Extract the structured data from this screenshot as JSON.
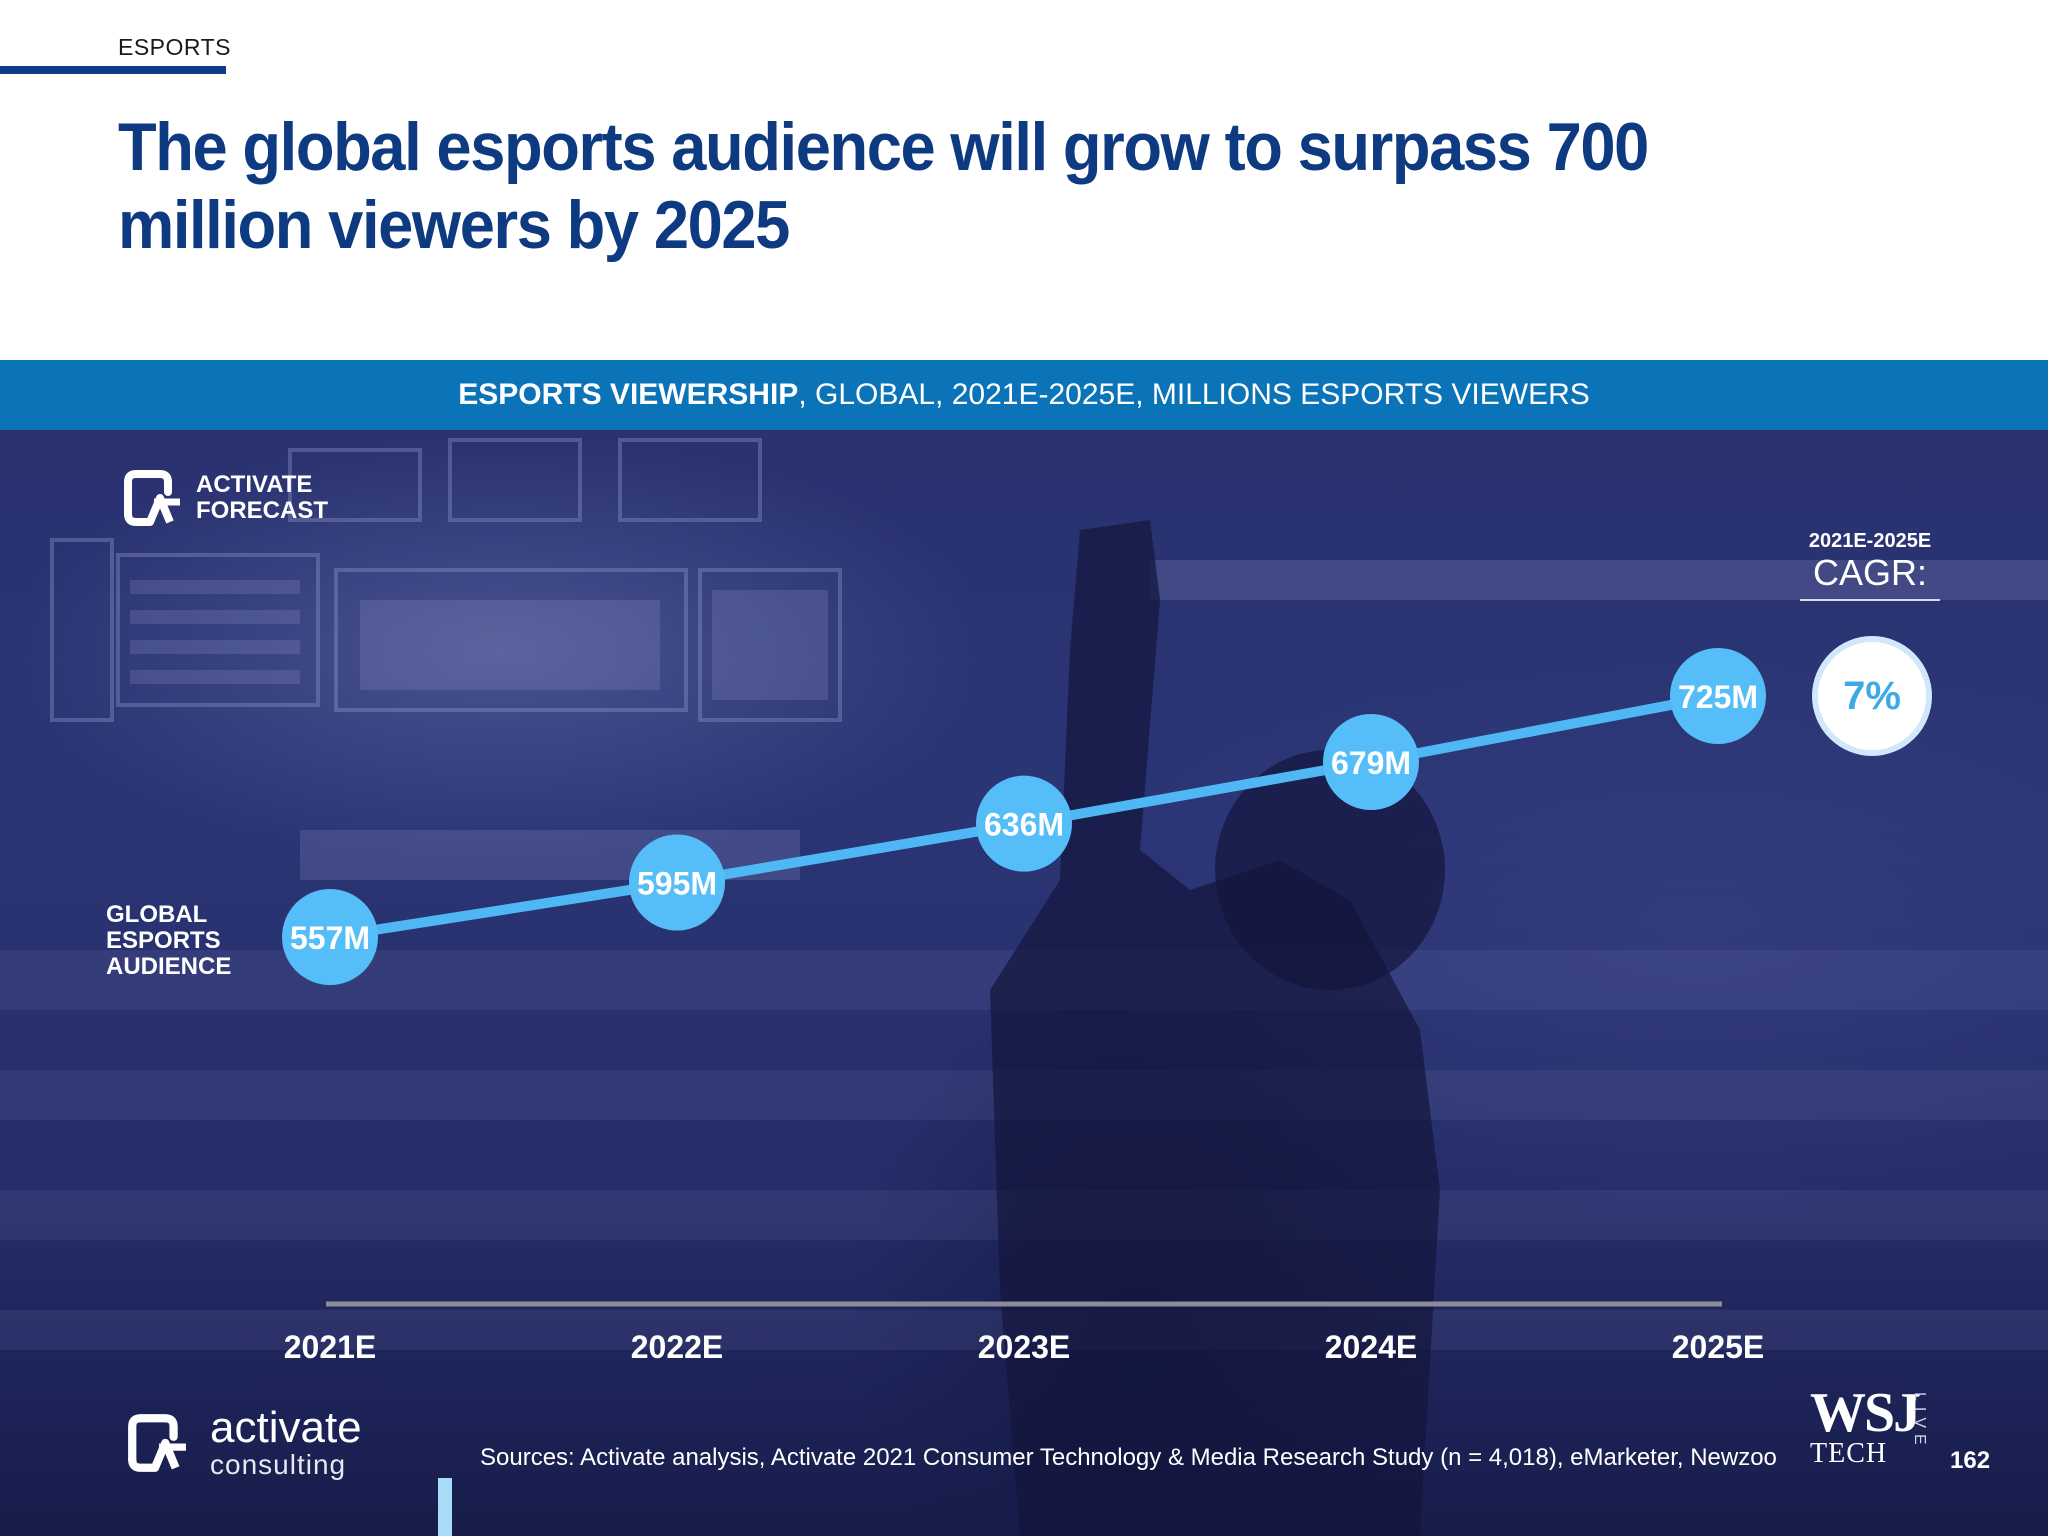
{
  "section_tag": "ESPORTS",
  "headline": "The global esports audience will grow to surpass 700 million viewers by 2025",
  "banner": {
    "bold": "ESPORTS VIEWERSHIP",
    "rest": ", GLOBAL, 2021E-2025E, MILLIONS ESPORTS VIEWERS"
  },
  "forecast_badge": {
    "line1": "ACTIVATE",
    "line2": "FORECAST"
  },
  "series_label": {
    "line1": "GLOBAL",
    "line2": "ESPORTS",
    "line3": "AUDIENCE"
  },
  "cagr": {
    "period": "2021E-2025E",
    "label": "CAGR:",
    "value": "7%"
  },
  "chart_data": {
    "type": "line",
    "title": "ESPORTS VIEWERSHIP, GLOBAL, 2021E-2025E, MILLIONS ESPORTS VIEWERS",
    "categories": [
      "2021E",
      "2022E",
      "2023E",
      "2024E",
      "2025E"
    ],
    "series": [
      {
        "name": "GLOBAL ESPORTS AUDIENCE",
        "values": [
          557,
          595,
          636,
          679,
          725
        ],
        "labels": [
          "557M",
          "595M",
          "636M",
          "679M",
          "725M"
        ]
      }
    ],
    "xlabel": "",
    "ylabel": "",
    "grid": false,
    "colors": {
      "line": "#4fb8f4",
      "marker": "#55bdf7",
      "label": "#ffffff",
      "axis": "#8a8d98"
    }
  },
  "footer": {
    "brand_line1": "activate",
    "brand_line2": "consulting",
    "sources": "Sources: Activate analysis, Activate 2021 Consumer Technology & Media Research Study (n = 4,018), eMarketer, Newzoo",
    "wsj_line1": "WSJ",
    "wsj_line2": "TECH",
    "wsj_live": "LIVE",
    "page_number": "162"
  }
}
